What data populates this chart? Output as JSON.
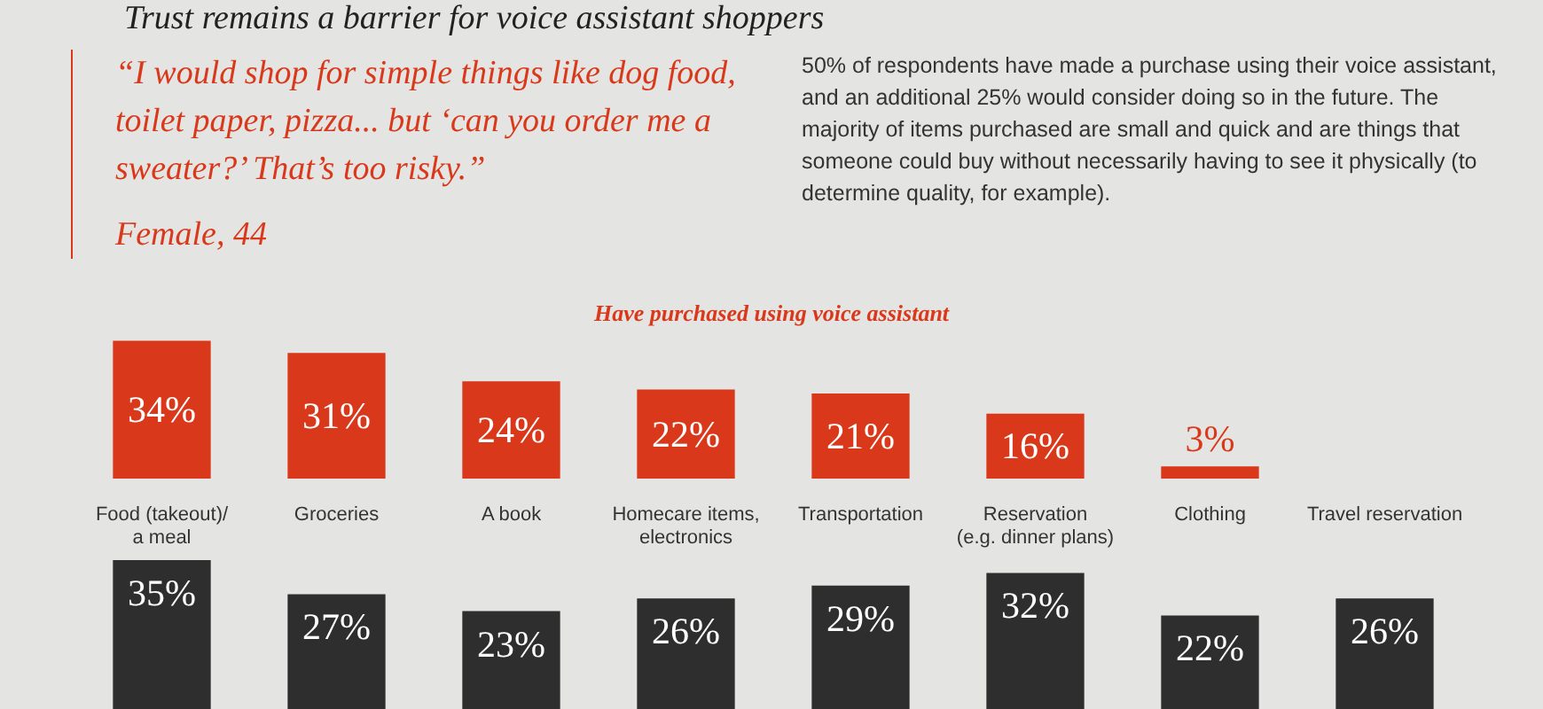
{
  "chart_data": [
    {
      "type": "bar",
      "title": "Trust remains a barrier for voice assistant shoppers",
      "annotations": [
        "“I would shop for simple things like dog food, toilet paper, pizza... but ‘can you order me a sweater?’ That’s too risky.”",
        "Female, 44",
        "50% of respondents have made a purchase using their voice assistant, and an additional 25% would consider doing so in the future. The majority of items purchased are small and quick and are things that someone could buy without necessarily having to see it physically (to determine quality, for example)."
      ],
      "categories": [
        "Food (takeout)/\na meal",
        "Groceries",
        "A book",
        "Homecare items,\nelectronics",
        "Transportation",
        "Reservation\n(e.g. dinner plans)",
        "Clothing",
        "Travel reservation"
      ],
      "series": [
        {
          "name": "Have purchased using voice assistant",
          "color": "#d9391a",
          "values": [
            34,
            31,
            24,
            22,
            21,
            16,
            3,
            null
          ],
          "value_labels": [
            "34%",
            "31%",
            "24%",
            "22%",
            "21%",
            "16%",
            "3%",
            null
          ]
        }
      ]
    },
    {
      "type": "bar",
      "tick_labels": false,
      "categories": [
        null,
        null,
        null,
        null,
        null,
        null,
        null,
        null
      ],
      "series": [
        {
          "color": "#2e2e2e",
          "values": [
            35,
            27,
            23,
            26,
            29,
            32,
            22,
            26
          ],
          "value_labels": [
            "35%",
            "27%",
            "23%",
            "26%",
            "29%",
            "32%",
            "22%",
            "26%"
          ]
        }
      ]
    }
  ]
}
